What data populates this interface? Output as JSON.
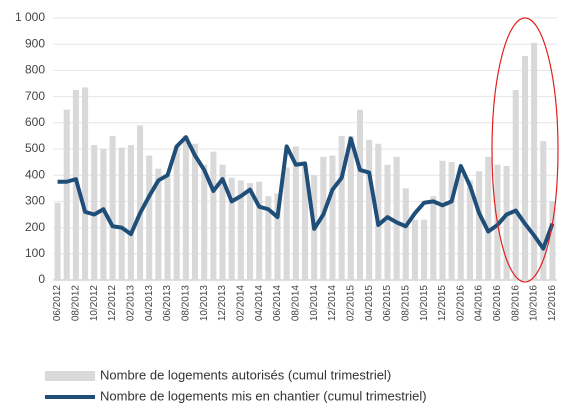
{
  "chart_data": {
    "type": "bar",
    "categories": [
      "06/2012",
      null,
      "08/2012",
      null,
      "10/2012",
      null,
      "12/2012",
      null,
      "02/2013",
      null,
      "04/2013",
      null,
      "06/2013",
      null,
      "08/2013",
      null,
      "10/2013",
      null,
      "12/2013",
      null,
      "02/2014",
      null,
      "04/2014",
      null,
      "06/2014",
      null,
      "08/2014",
      null,
      "10/2014",
      null,
      "12/2014",
      null,
      "02/2015",
      null,
      "04/2015",
      null,
      "06/2015",
      null,
      "08/2015",
      null,
      "10/2015",
      null,
      "12/2015",
      null,
      "02/2016",
      null,
      "04/2016",
      null,
      "06/2016",
      null,
      "08/2016",
      null,
      "10/2016",
      null,
      "12/2016"
    ],
    "series": [
      {
        "name": "Nombre de logements autorisés (cumul trimestriel)",
        "type": "bar",
        "color": "#d9d9d9",
        "values": [
          295,
          650,
          725,
          735,
          515,
          500,
          550,
          505,
          515,
          590,
          475,
          425,
          400,
          510,
          550,
          520,
          440,
          490,
          440,
          390,
          380,
          370,
          375,
          320,
          330,
          430,
          510,
          440,
          400,
          470,
          475,
          550,
          550,
          650,
          535,
          520,
          440,
          470,
          350,
          230,
          230,
          320,
          455,
          450,
          400,
          380,
          415,
          470,
          440,
          435,
          725,
          855,
          905,
          530,
          300
        ]
      },
      {
        "name": "Nombre de logements mis en chantier (cumul trimestriel)",
        "type": "line",
        "color": "#1f4e79",
        "values": [
          375,
          375,
          385,
          260,
          250,
          270,
          205,
          200,
          175,
          255,
          320,
          380,
          400,
          510,
          545,
          475,
          420,
          340,
          385,
          300,
          320,
          345,
          280,
          270,
          240,
          510,
          440,
          445,
          195,
          250,
          345,
          390,
          540,
          420,
          410,
          210,
          240,
          220,
          205,
          255,
          295,
          300,
          285,
          300,
          435,
          360,
          255,
          185,
          210,
          250,
          265,
          215,
          170,
          120,
          215
        ]
      }
    ],
    "ylim": [
      0,
      1000
    ],
    "yticks": [
      0,
      100,
      200,
      300,
      400,
      500,
      600,
      700,
      800,
      900,
      {
        "value": 1000,
        "label": "1 000"
      }
    ],
    "grid": true
  }
}
